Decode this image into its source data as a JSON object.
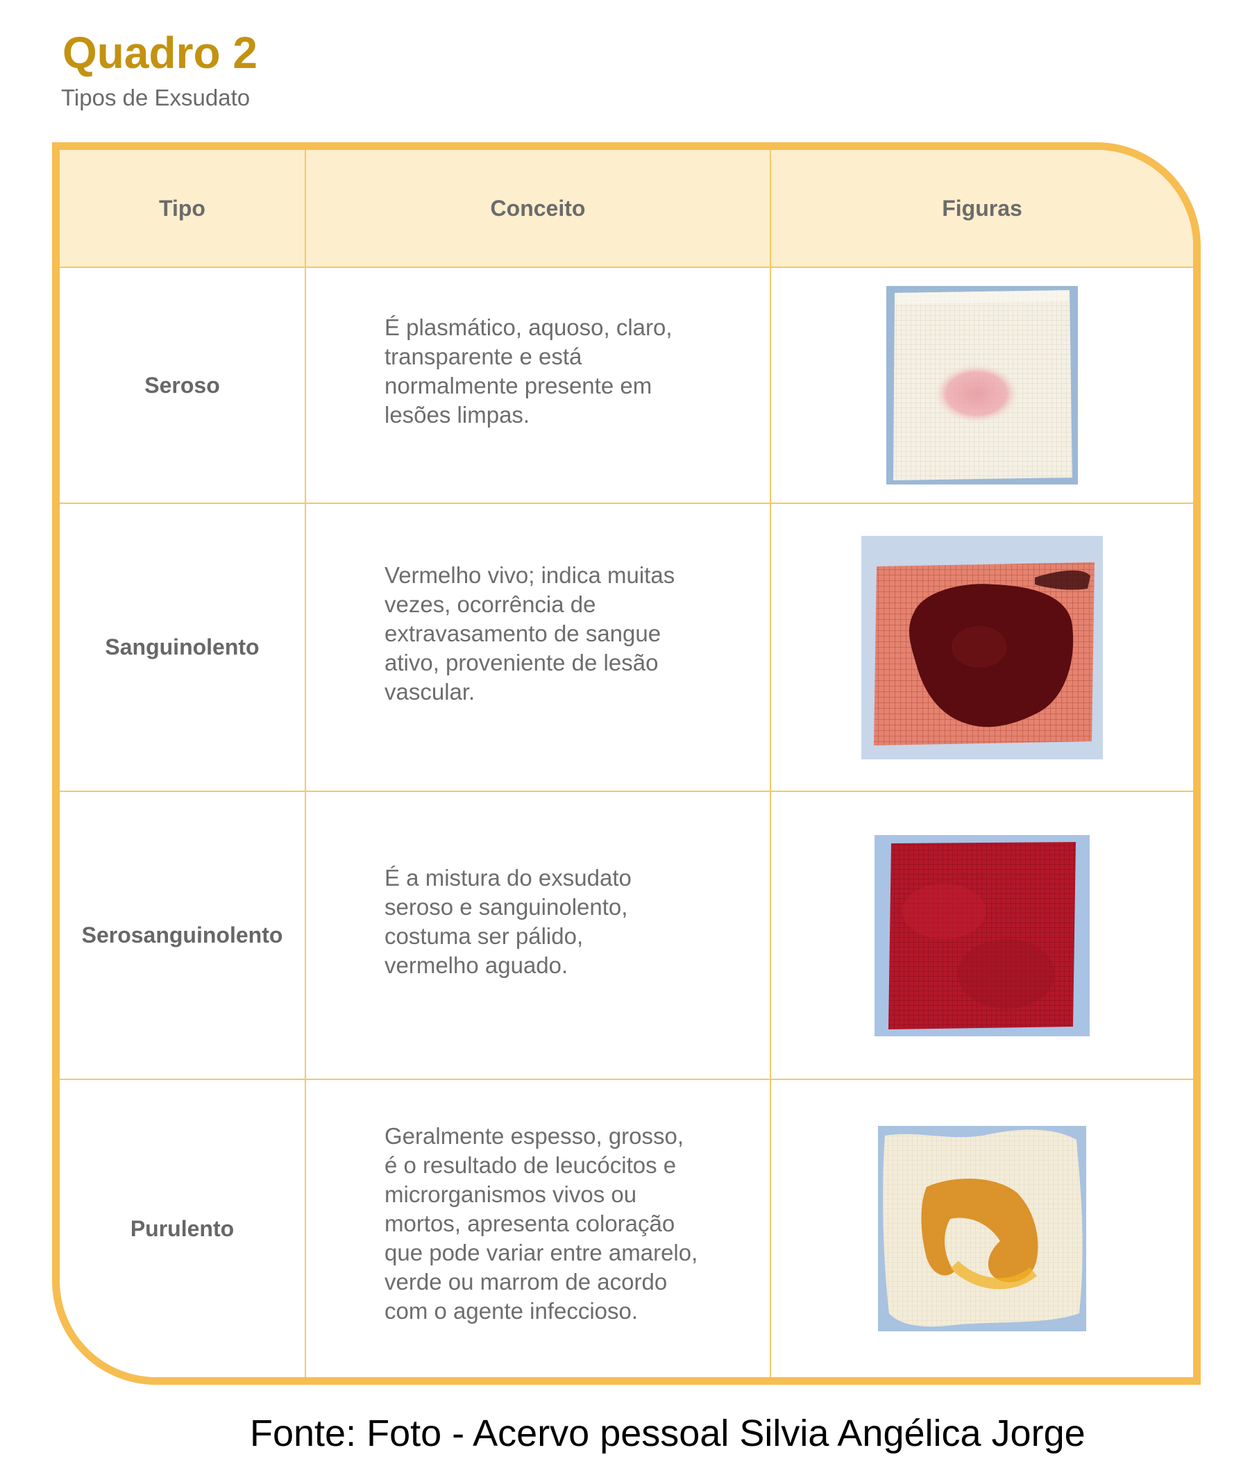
{
  "header": {
    "title": "Quadro 2",
    "subtitle": "Tipos de Exsudato"
  },
  "table": {
    "columns": [
      "Tipo",
      "Conceito",
      "Figuras"
    ],
    "rows": [
      {
        "tipo": "Seroso",
        "conceito": "É plasmático, aquoso, claro,\ntransparente e está\nnormalmente presente em\nlesões limpas.",
        "figura": "gauze-light-pink-stain"
      },
      {
        "tipo": "Sanguinolento",
        "conceito": "Vermelho vivo; indica muitas\nvezes, ocorrência de\nextravasamento de sangue\nativo, proveniente de lesão\nvascular.",
        "figura": "gauze-dark-blood-stain"
      },
      {
        "tipo": "Serosanguinolento",
        "conceito": "É a mistura do exsudato\nseroso e sanguinolento,\ncostuma ser pálido,\nvermelho aguado.",
        "figura": "gauze-red-soaked"
      },
      {
        "tipo": "Purulento",
        "conceito": "Geralmente espesso, grosso,\né o resultado de leucócitos e\nmicrorganismos vivos ou\nmortos, apresenta coloração\nque pode variar entre amarelo,\nverde ou marrom de acordo\ncom o agente infeccioso.",
        "figura": "gauze-yellow-pus-stain"
      }
    ]
  },
  "colors": {
    "accent": "#c39211",
    "border": "#f6bd51",
    "header_bg": "#fdeecd"
  },
  "footer": {
    "source": "Fonte: Foto - Acervo pessoal Silvia Angélica Jorge"
  }
}
